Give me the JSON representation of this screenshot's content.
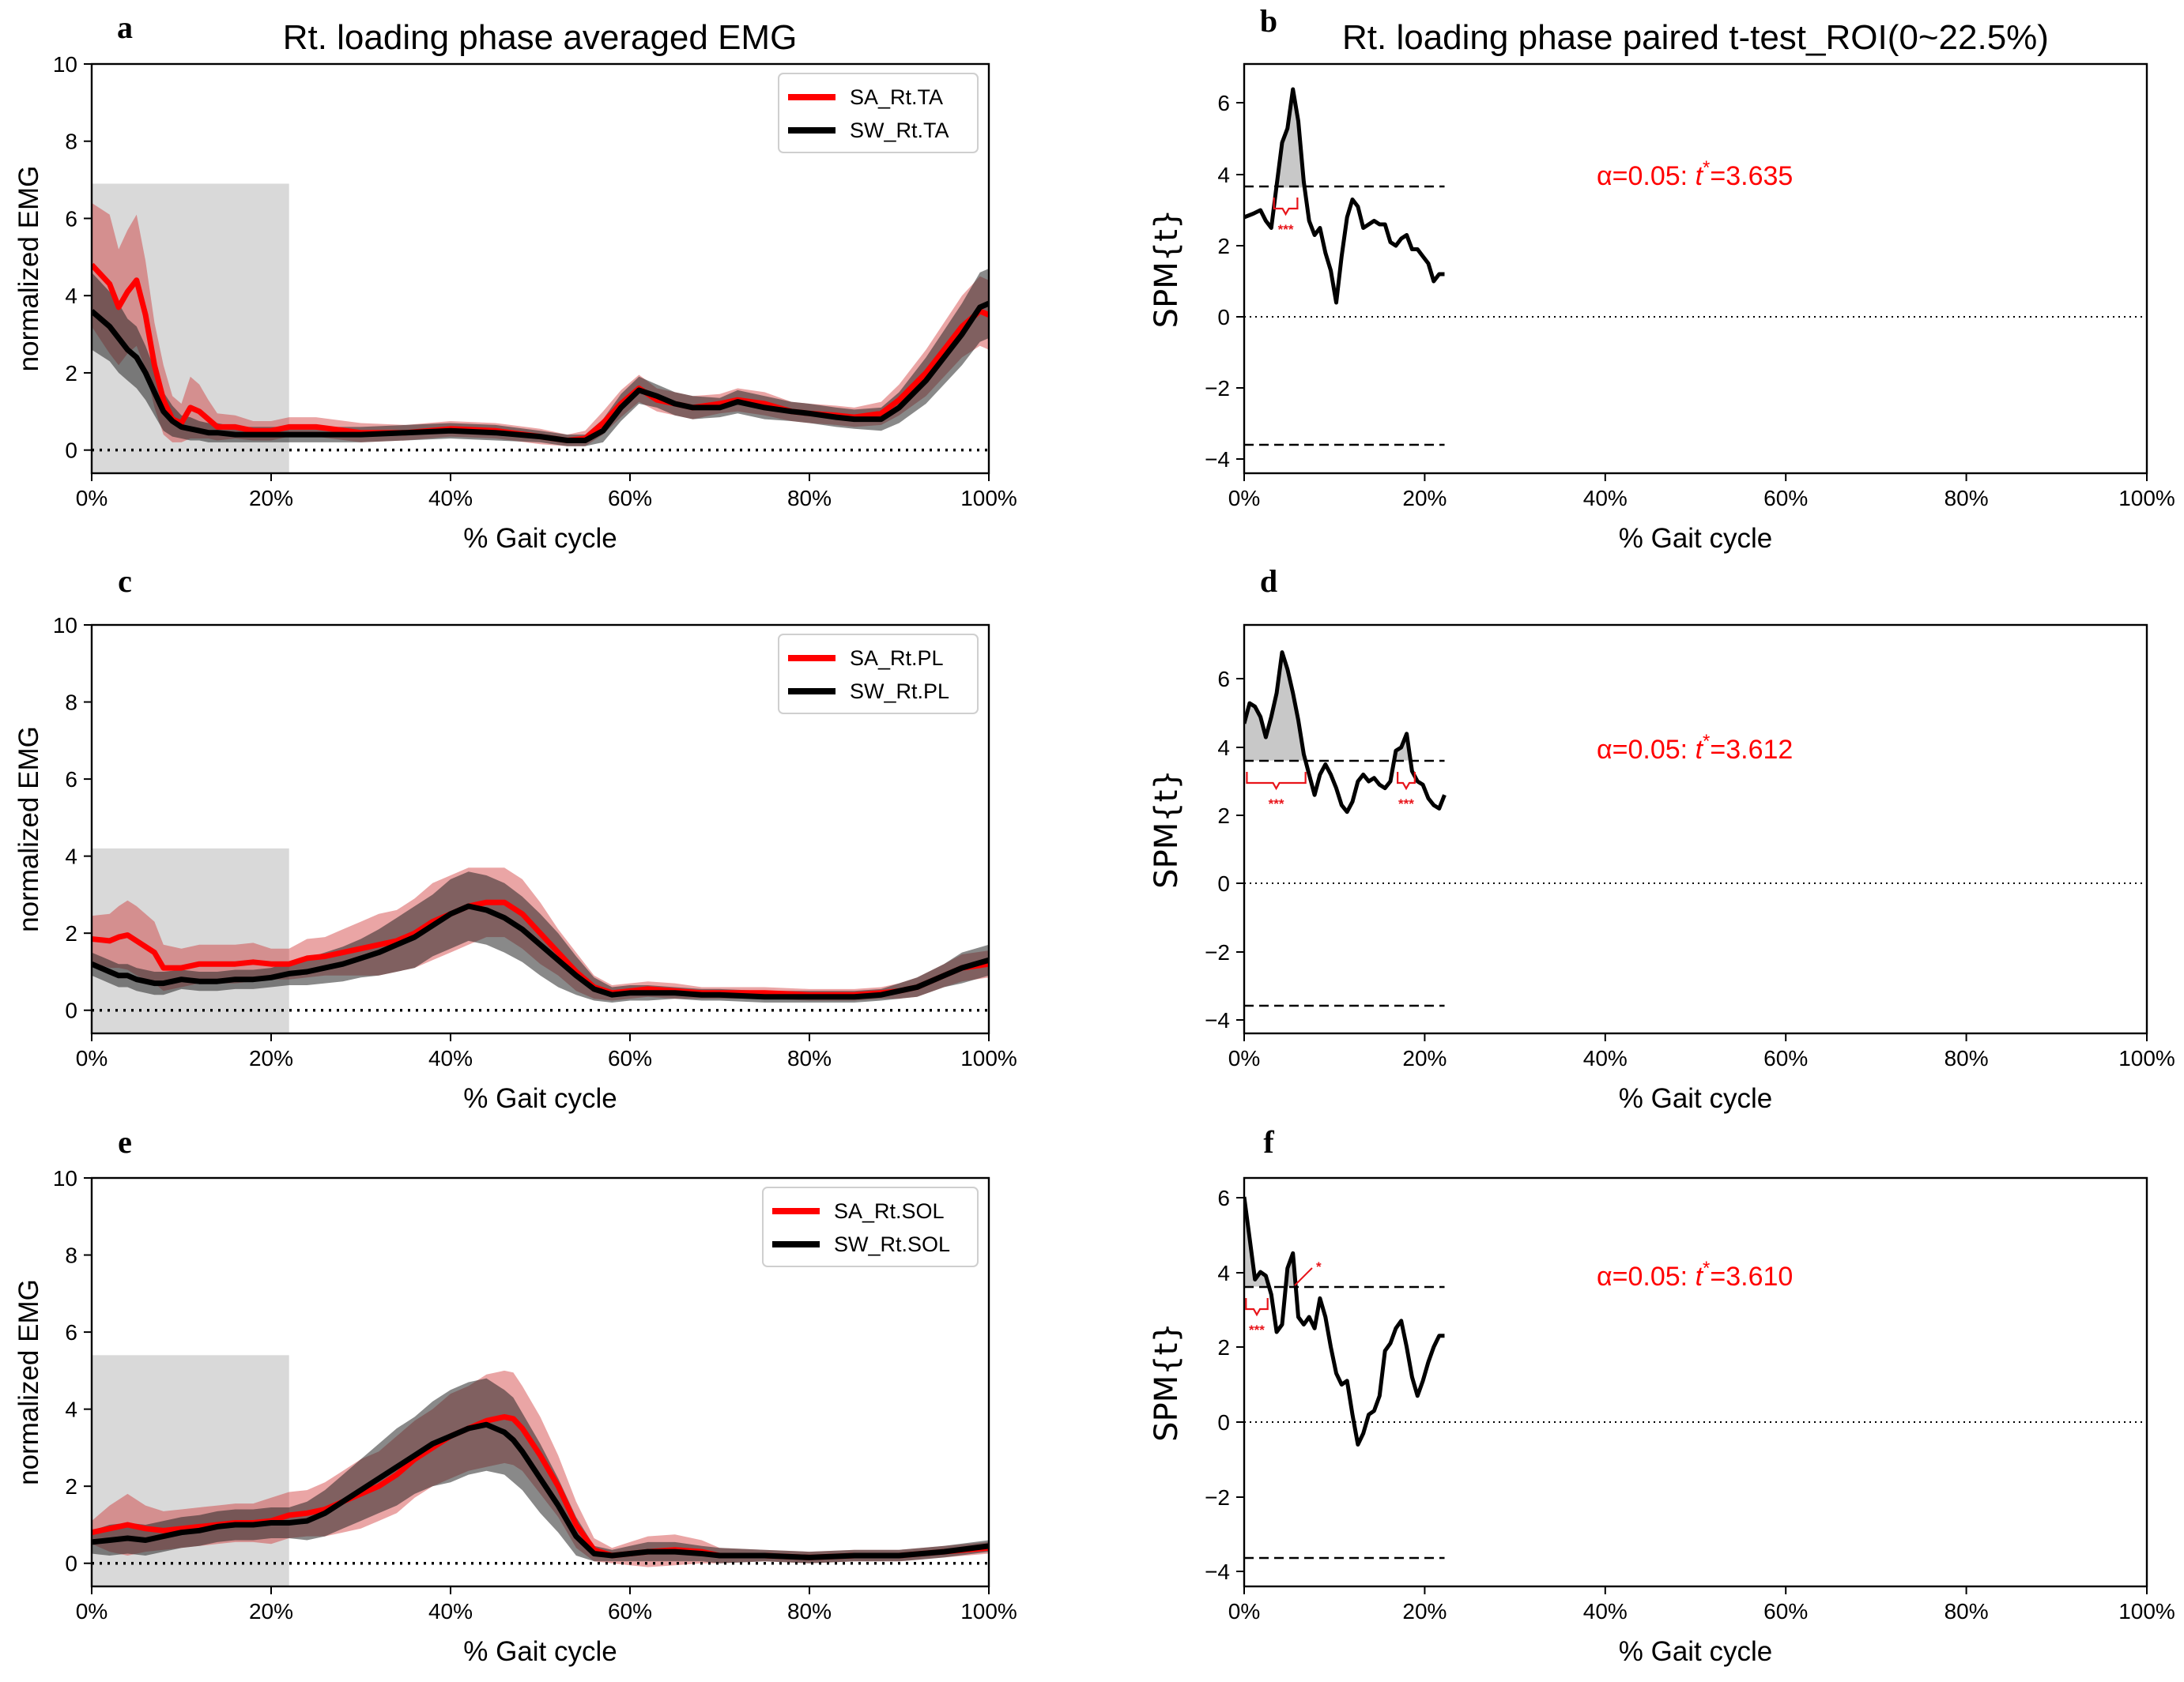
{
  "figure": {
    "title_left": "Rt. loading phase averaged EMG",
    "title_right": "Rt. loading phase paired t-test_ROI(0~22.5%)",
    "xlabel": "% Gait cycle",
    "ylabel_emg": "normalized EMG",
    "ylabel_spm": "SPM{t}",
    "colors": {
      "SA": "#ff0000",
      "SW": "#000000",
      "roi": "#d9d9d9",
      "sig": "#e8141a"
    }
  },
  "chart_data": [
    {
      "id": "a",
      "type": "line",
      "letter": "a",
      "xlim": [
        0,
        100
      ],
      "ylim": [
        -0.6,
        10
      ],
      "xticks": [
        "0%",
        "20%",
        "40%",
        "60%",
        "80%",
        "100%"
      ],
      "yticks": [
        "0",
        "2",
        "4",
        "6",
        "8",
        "10"
      ],
      "roi": {
        "x": [
          0,
          22
        ],
        "ymax": 6.9
      },
      "legend": [
        "SA_Rt.TA",
        "SW_Rt.TA"
      ],
      "x": [
        0,
        2,
        3,
        4,
        5,
        6,
        7,
        8,
        9,
        10,
        11,
        12,
        13,
        14,
        16,
        18,
        20,
        22,
        25,
        30,
        35,
        40,
        45,
        50,
        53,
        55,
        57,
        59,
        61,
        63,
        65,
        67,
        70,
        72,
        75,
        78,
        80,
        83,
        85,
        88,
        90,
        93,
        95,
        97,
        99,
        100
      ],
      "series": [
        {
          "name": "SA_Rt.TA",
          "values": [
            4.8,
            4.3,
            3.7,
            4.1,
            4.4,
            3.5,
            2.2,
            1.3,
            0.8,
            0.7,
            1.1,
            1.0,
            0.8,
            0.6,
            0.6,
            0.5,
            0.5,
            0.6,
            0.6,
            0.45,
            0.45,
            0.55,
            0.5,
            0.35,
            0.25,
            0.3,
            0.7,
            1.2,
            1.6,
            1.3,
            1.2,
            1.1,
            1.2,
            1.3,
            1.2,
            1.0,
            0.95,
            0.9,
            0.85,
            0.95,
            1.3,
            2.0,
            2.6,
            3.2,
            3.6,
            3.5
          ],
          "spread": [
            1.6,
            1.8,
            1.5,
            1.6,
            1.7,
            1.4,
            1.1,
            0.9,
            0.6,
            0.5,
            0.8,
            0.7,
            0.5,
            0.35,
            0.3,
            0.25,
            0.25,
            0.25,
            0.25,
            0.25,
            0.2,
            0.2,
            0.2,
            0.2,
            0.15,
            0.2,
            0.3,
            0.35,
            0.35,
            0.3,
            0.3,
            0.3,
            0.25,
            0.3,
            0.3,
            0.25,
            0.25,
            0.25,
            0.25,
            0.3,
            0.4,
            0.6,
            0.7,
            0.8,
            0.9,
            0.9
          ]
        },
        {
          "name": "SW_Rt.TA",
          "values": [
            3.6,
            3.2,
            2.9,
            2.6,
            2.4,
            2.0,
            1.5,
            1.0,
            0.75,
            0.6,
            0.55,
            0.5,
            0.45,
            0.45,
            0.4,
            0.4,
            0.4,
            0.4,
            0.4,
            0.4,
            0.45,
            0.5,
            0.45,
            0.35,
            0.25,
            0.25,
            0.5,
            1.1,
            1.55,
            1.4,
            1.2,
            1.1,
            1.1,
            1.25,
            1.1,
            1.0,
            0.95,
            0.85,
            0.8,
            0.8,
            1.1,
            1.8,
            2.4,
            3.0,
            3.7,
            3.8
          ],
          "spread": [
            1.0,
            0.9,
            0.9,
            0.8,
            0.8,
            0.7,
            0.6,
            0.5,
            0.4,
            0.3,
            0.3,
            0.25,
            0.25,
            0.25,
            0.2,
            0.2,
            0.2,
            0.2,
            0.2,
            0.2,
            0.2,
            0.2,
            0.2,
            0.15,
            0.15,
            0.15,
            0.3,
            0.35,
            0.35,
            0.3,
            0.3,
            0.3,
            0.25,
            0.3,
            0.3,
            0.25,
            0.25,
            0.25,
            0.25,
            0.3,
            0.4,
            0.6,
            0.7,
            0.8,
            0.9,
            0.9
          ]
        }
      ]
    },
    {
      "id": "b",
      "type": "line",
      "letter": "b",
      "xlim": [
        0,
        100
      ],
      "ylim": [
        -4.4,
        7.1
      ],
      "xticks": [
        "0%",
        "20%",
        "40%",
        "60%",
        "80%",
        "100%"
      ],
      "yticks": [
        "−4",
        "−2",
        "0",
        "2",
        "4",
        "6"
      ],
      "threshold": 3.635,
      "threshold_label": "α=0.05:  t*=3.635",
      "x": [
        0,
        1,
        1.8,
        2.4,
        3,
        3.6,
        4.2,
        4.8,
        5.4,
        6,
        6.6,
        7.2,
        7.8,
        8.4,
        9,
        9.6,
        10.2,
        10.8,
        11.4,
        12,
        12.6,
        13.2,
        13.8,
        14.4,
        15,
        15.6,
        16.2,
        16.8,
        17.4,
        18,
        18.6,
        19.2,
        19.8,
        20.4,
        21,
        21.6,
        22.2
      ],
      "values": [
        2.8,
        2.9,
        3.0,
        2.7,
        2.5,
        3.7,
        4.9,
        5.3,
        6.4,
        5.5,
        3.8,
        2.7,
        2.3,
        2.5,
        1.8,
        1.3,
        0.4,
        1.7,
        2.8,
        3.3,
        3.1,
        2.5,
        2.6,
        2.7,
        2.6,
        2.6,
        2.1,
        2.0,
        2.2,
        2.3,
        1.9,
        1.9,
        1.7,
        1.5,
        1.0,
        1.2,
        1.2
      ],
      "sig_clusters": [
        {
          "x": [
            3.3,
            5.9
          ],
          "label": "***"
        }
      ]
    },
    {
      "id": "c",
      "type": "line",
      "letter": "c",
      "xlim": [
        0,
        100
      ],
      "ylim": [
        -0.6,
        10
      ],
      "xticks": [
        "0%",
        "20%",
        "40%",
        "60%",
        "80%",
        "100%"
      ],
      "yticks": [
        "0",
        "2",
        "4",
        "6",
        "8",
        "10"
      ],
      "roi": {
        "x": [
          0,
          22
        ],
        "ymax": 4.2
      },
      "legend": [
        "SA_Rt.PL",
        "SW_Rt.PL"
      ],
      "x": [
        0,
        2,
        3,
        4,
        5,
        7,
        8,
        10,
        12,
        14,
        16,
        18,
        20,
        22,
        24,
        26,
        28,
        30,
        32,
        34,
        36,
        38,
        40,
        42,
        44,
        46,
        48,
        50,
        52,
        54,
        56,
        58,
        60,
        62,
        65,
        68,
        70,
        75,
        80,
        82,
        85,
        88,
        90,
        92,
        95,
        97,
        100
      ],
      "series": [
        {
          "name": "SA_Rt.PL",
          "values": [
            1.85,
            1.8,
            1.9,
            1.95,
            1.8,
            1.5,
            1.1,
            1.1,
            1.2,
            1.2,
            1.2,
            1.25,
            1.2,
            1.2,
            1.35,
            1.4,
            1.5,
            1.6,
            1.7,
            1.8,
            2.0,
            2.3,
            2.5,
            2.7,
            2.8,
            2.8,
            2.5,
            2.0,
            1.5,
            1.0,
            0.6,
            0.45,
            0.5,
            0.55,
            0.5,
            0.45,
            0.45,
            0.45,
            0.4,
            0.4,
            0.4,
            0.45,
            0.5,
            0.6,
            0.9,
            1.1,
            1.2
          ],
          "spread": [
            0.6,
            0.7,
            0.8,
            0.9,
            0.9,
            0.8,
            0.6,
            0.5,
            0.5,
            0.5,
            0.5,
            0.5,
            0.4,
            0.4,
            0.5,
            0.5,
            0.6,
            0.7,
            0.8,
            0.8,
            0.9,
            1.0,
            1.0,
            1.0,
            0.9,
            0.9,
            0.9,
            0.8,
            0.6,
            0.5,
            0.3,
            0.2,
            0.2,
            0.2,
            0.2,
            0.15,
            0.15,
            0.15,
            0.15,
            0.15,
            0.15,
            0.15,
            0.2,
            0.25,
            0.3,
            0.35,
            0.35
          ]
        },
        {
          "name": "SW_Rt.PL",
          "values": [
            1.2,
            1.0,
            0.9,
            0.9,
            0.8,
            0.7,
            0.7,
            0.8,
            0.75,
            0.75,
            0.8,
            0.8,
            0.85,
            0.95,
            1.0,
            1.1,
            1.2,
            1.35,
            1.5,
            1.7,
            1.9,
            2.2,
            2.5,
            2.7,
            2.6,
            2.4,
            2.1,
            1.7,
            1.3,
            0.9,
            0.55,
            0.4,
            0.45,
            0.45,
            0.45,
            0.4,
            0.4,
            0.35,
            0.35,
            0.35,
            0.35,
            0.4,
            0.5,
            0.6,
            0.9,
            1.1,
            1.3
          ],
          "spread": [
            0.3,
            0.3,
            0.3,
            0.3,
            0.3,
            0.3,
            0.3,
            0.25,
            0.25,
            0.25,
            0.25,
            0.25,
            0.25,
            0.3,
            0.35,
            0.4,
            0.45,
            0.5,
            0.6,
            0.7,
            0.8,
            0.8,
            0.9,
            0.9,
            0.9,
            0.9,
            0.85,
            0.8,
            0.7,
            0.5,
            0.3,
            0.2,
            0.2,
            0.2,
            0.15,
            0.15,
            0.15,
            0.15,
            0.15,
            0.15,
            0.15,
            0.15,
            0.2,
            0.25,
            0.3,
            0.4,
            0.4
          ]
        }
      ]
    },
    {
      "id": "d",
      "type": "line",
      "letter": "d",
      "xlim": [
        0,
        100
      ],
      "ylim": [
        -4.4,
        7.6
      ],
      "xticks": [
        "0%",
        "20%",
        "40%",
        "60%",
        "80%",
        "100%"
      ],
      "yticks": [
        "−4",
        "−2",
        "0",
        "2",
        "4",
        "6"
      ],
      "threshold": 3.612,
      "threshold_label": "α=0.05:  t*=3.612",
      "x": [
        0,
        0.6,
        1.2,
        1.8,
        2.4,
        3,
        3.6,
        4.2,
        4.8,
        5.4,
        6,
        6.6,
        7.2,
        7.8,
        8.4,
        9,
        9.6,
        10.2,
        10.8,
        11.4,
        12,
        12.6,
        13.2,
        13.8,
        14.4,
        15,
        15.6,
        16.2,
        16.8,
        17.4,
        18,
        18.6,
        19.2,
        19.8,
        20.4,
        21,
        21.6,
        22.2
      ],
      "values": [
        4.7,
        5.3,
        5.2,
        4.9,
        4.3,
        4.9,
        5.6,
        6.8,
        6.3,
        5.6,
        4.8,
        3.8,
        3.2,
        2.6,
        3.2,
        3.5,
        3.2,
        2.8,
        2.3,
        2.1,
        2.4,
        3.0,
        3.2,
        3.0,
        3.1,
        2.9,
        2.8,
        3.0,
        3.9,
        4.0,
        4.4,
        3.3,
        3.0,
        2.9,
        2.5,
        2.3,
        2.2,
        2.6
      ],
      "sig_clusters": [
        {
          "x": [
            0.3,
            6.8
          ],
          "label": "***"
        },
        {
          "x": [
            17.0,
            18.9
          ],
          "label": "***"
        }
      ]
    },
    {
      "id": "e",
      "type": "line",
      "letter": "e",
      "xlim": [
        0,
        100
      ],
      "ylim": [
        -0.6,
        10
      ],
      "xticks": [
        "0%",
        "20%",
        "40%",
        "60%",
        "80%",
        "100%"
      ],
      "yticks": [
        "0",
        "2",
        "4",
        "6",
        "8",
        "10"
      ],
      "roi": {
        "x": [
          0,
          22
        ],
        "ymax": 5.4
      },
      "legend": [
        "SA_Rt.SOL",
        "SW_Rt.SOL"
      ],
      "x": [
        0,
        2,
        4,
        6,
        8,
        10,
        12,
        14,
        16,
        18,
        20,
        22,
        24,
        26,
        28,
        30,
        32,
        34,
        36,
        38,
        40,
        42,
        44,
        46,
        47,
        48,
        50,
        52,
        54,
        56,
        58,
        60,
        62,
        65,
        68,
        70,
        75,
        80,
        85,
        90,
        95,
        100
      ],
      "series": [
        {
          "name": "SA_Rt.SOL",
          "values": [
            0.8,
            0.9,
            1.0,
            0.9,
            0.85,
            0.9,
            0.95,
            1.0,
            1.05,
            1.05,
            1.1,
            1.25,
            1.3,
            1.4,
            1.6,
            1.8,
            2.0,
            2.3,
            2.7,
            3.0,
            3.3,
            3.5,
            3.7,
            3.8,
            3.75,
            3.5,
            2.8,
            2.0,
            1.0,
            0.35,
            0.2,
            0.25,
            0.3,
            0.35,
            0.3,
            0.2,
            0.2,
            0.15,
            0.2,
            0.2,
            0.3,
            0.4
          ],
          "spread": [
            0.3,
            0.6,
            0.8,
            0.6,
            0.5,
            0.5,
            0.5,
            0.5,
            0.5,
            0.5,
            0.6,
            0.6,
            0.6,
            0.7,
            0.8,
            0.9,
            0.9,
            1.0,
            1.0,
            1.0,
            1.1,
            1.1,
            1.2,
            1.2,
            1.2,
            1.1,
            1.0,
            0.8,
            0.6,
            0.3,
            0.2,
            0.3,
            0.4,
            0.4,
            0.3,
            0.2,
            0.15,
            0.15,
            0.15,
            0.15,
            0.15,
            0.15
          ]
        },
        {
          "name": "SW_Rt.SOL",
          "values": [
            0.55,
            0.6,
            0.65,
            0.6,
            0.7,
            0.8,
            0.85,
            0.95,
            1.0,
            1.0,
            1.05,
            1.05,
            1.1,
            1.3,
            1.6,
            1.9,
            2.2,
            2.5,
            2.8,
            3.1,
            3.3,
            3.5,
            3.6,
            3.4,
            3.2,
            2.9,
            2.2,
            1.5,
            0.7,
            0.25,
            0.2,
            0.25,
            0.3,
            0.3,
            0.25,
            0.2,
            0.2,
            0.15,
            0.2,
            0.2,
            0.3,
            0.45
          ],
          "spread": [
            0.3,
            0.4,
            0.4,
            0.4,
            0.4,
            0.4,
            0.4,
            0.4,
            0.4,
            0.4,
            0.4,
            0.4,
            0.5,
            0.6,
            0.7,
            0.8,
            0.9,
            1.0,
            1.0,
            1.1,
            1.2,
            1.2,
            1.2,
            1.1,
            1.1,
            1.0,
            0.9,
            0.7,
            0.5,
            0.2,
            0.15,
            0.2,
            0.25,
            0.25,
            0.2,
            0.2,
            0.15,
            0.15,
            0.15,
            0.15,
            0.15,
            0.15
          ]
        }
      ]
    },
    {
      "id": "f",
      "type": "line",
      "letter": "f",
      "xlim": [
        0,
        100
      ],
      "ylim": [
        -4.4,
        6.5
      ],
      "xticks": [
        "0%",
        "20%",
        "40%",
        "60%",
        "80%",
        "100%"
      ],
      "yticks": [
        "−4",
        "−2",
        "0",
        "2",
        "4",
        "6"
      ],
      "threshold": 3.61,
      "threshold_label": "α=0.05:  t*=3.610",
      "x": [
        0,
        0.6,
        1.2,
        1.8,
        2.4,
        3,
        3.6,
        4.2,
        4.8,
        5.4,
        6,
        6.6,
        7.2,
        7.8,
        8.4,
        9,
        9.6,
        10.2,
        10.8,
        11.4,
        12,
        12.6,
        13.2,
        13.8,
        14.4,
        15,
        15.6,
        16.2,
        16.8,
        17.4,
        18,
        18.6,
        19.2,
        19.8,
        20.4,
        21,
        21.6,
        22.2
      ],
      "values": [
        6.0,
        4.9,
        3.8,
        4.0,
        3.9,
        3.4,
        2.4,
        2.6,
        4.1,
        4.5,
        2.8,
        2.6,
        2.8,
        2.5,
        3.3,
        2.8,
        2.0,
        1.3,
        1.0,
        1.1,
        0.2,
        -0.6,
        -0.3,
        0.2,
        0.3,
        0.7,
        1.9,
        2.1,
        2.5,
        2.7,
        2.0,
        1.2,
        0.7,
        1.1,
        1.6,
        2.0,
        2.3,
        2.3
      ],
      "sig_clusters": [
        {
          "x": [
            0.2,
            2.6
          ],
          "label": "***"
        }
      ],
      "single_marks": [
        {
          "x": 5.6,
          "label": "*"
        }
      ]
    }
  ]
}
